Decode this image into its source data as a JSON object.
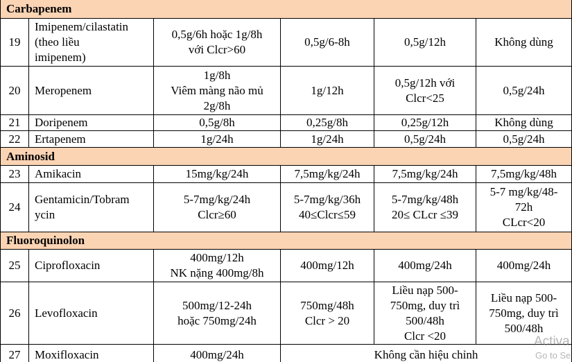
{
  "sections": [
    {
      "title": "Carbapenem",
      "rows": [
        {
          "no": "19",
          "drug": [
            "Imipenem/cilastatin",
            "(theo liều",
            "imipenem)"
          ],
          "cells": [
            [
              "0,5g/6h hoặc 1g/8h",
              "với Clcr>60"
            ],
            [
              "0,5g/6-8h"
            ],
            [
              "0,5g/12h"
            ],
            [
              "Không dùng"
            ]
          ]
        },
        {
          "no": "20",
          "drug": [
            "Meropenem"
          ],
          "cells": [
            [
              "1g/8h",
              "Viêm màng não mủ",
              "2g/8h"
            ],
            [
              "1g/12h"
            ],
            [
              "0,5g/12h với",
              "Clcr<25"
            ],
            [
              "0,5g/24h"
            ]
          ]
        },
        {
          "no": "21",
          "drug": [
            "Doripenem"
          ],
          "cells": [
            [
              "0,5g/8h"
            ],
            [
              "0,25g/8h"
            ],
            [
              "0,25g/12h"
            ],
            [
              "Không dùng"
            ]
          ]
        },
        {
          "no": "22",
          "drug": [
            "Ertapenem"
          ],
          "cells": [
            [
              "1g/24h"
            ],
            [
              "1g/24h"
            ],
            [
              "0,5g/24h"
            ],
            [
              "0,5g/24h"
            ]
          ]
        }
      ]
    },
    {
      "title": "Aminosid",
      "rows": [
        {
          "no": "23",
          "drug": [
            "Amikacin"
          ],
          "cells": [
            [
              "15mg/kg/24h"
            ],
            [
              "7,5mg/kg/24h"
            ],
            [
              "7,5mg/kg/24h"
            ],
            [
              "7,5mg/kg/48h"
            ]
          ]
        },
        {
          "no": "24",
          "drug": [
            "Gentamicin/Tobram",
            "ycin"
          ],
          "cells": [
            [
              "5-7mg/kg/24h",
              "Clcr≥60"
            ],
            [
              "5-7mg/kg/36h",
              "40≤Clcr≤59"
            ],
            [
              "5-7mg/kg/48h",
              "20≤ CLcr ≤39"
            ],
            [
              "5-7 mg/kg/48-",
              "72h",
              "CLcr<20"
            ]
          ]
        }
      ]
    },
    {
      "title": "Fluoroquinolon",
      "rows": [
        {
          "no": "25",
          "drug": [
            "Ciprofloxacin"
          ],
          "cells": [
            [
              "400mg/12h",
              "NK nặng 400mg/8h"
            ],
            [
              "400mg/12h"
            ],
            [
              "400mg/24h"
            ],
            [
              "400mg/24h"
            ]
          ]
        },
        {
          "no": "26",
          "drug": [
            "Levofloxacin"
          ],
          "cells": [
            [
              "500mg/12-24h",
              "hoặc 750mg/24h"
            ],
            [
              "750mg/48h",
              "Clcr > 20"
            ],
            [
              "Liều nạp 500-",
              "750mg, duy trì",
              "500/48h",
              "Clcr <20"
            ],
            [
              "Liều nạp 500-",
              "750mg, duy trì",
              "500/48h"
            ]
          ]
        },
        {
          "no": "27",
          "drug": [
            "Moxifloxacin"
          ],
          "cells": [
            [
              "400mg/24h"
            ],
            [
              "Không cần hiệu chỉnh"
            ]
          ]
        }
      ]
    }
  ],
  "watermark": [
    "Activa",
    "Go to Se"
  ]
}
